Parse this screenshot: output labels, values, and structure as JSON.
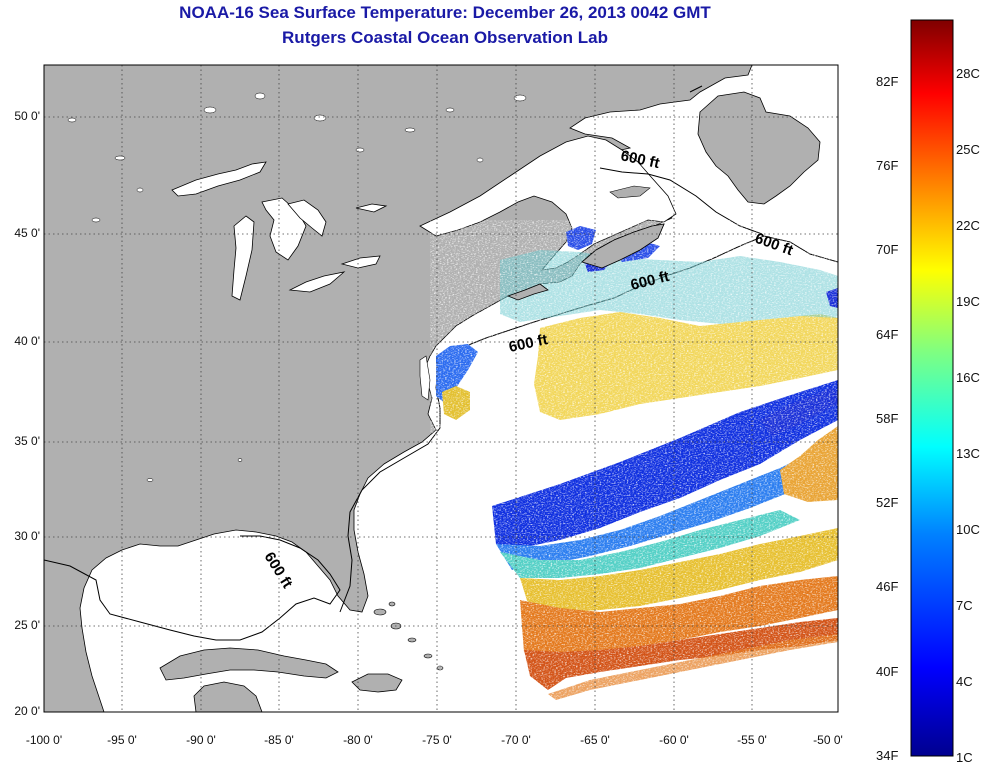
{
  "title": "NOAA-16 Sea Surface Temperature:  December 26, 2013 0042 GMT",
  "subtitle": "Rutgers Coastal Ocean Observation Lab",
  "map": {
    "lon_labels": [
      "-100 0'",
      "-95 0'",
      "-90 0'",
      "-85 0'",
      "-80 0'",
      "-75 0'",
      "-70 0'",
      "-65 0'",
      "-60 0'",
      "-55 0'",
      "-50 0'"
    ],
    "lat_labels": [
      "50 0'",
      "45 0'",
      "40 0'",
      "35 0'",
      "30 0'",
      "25 0'",
      "20 0'"
    ],
    "isobath_labels": [
      "600 ft",
      "600 ft",
      "600 ft",
      "600 ft",
      "600 ft"
    ],
    "land_color": "#b0b0b0",
    "ocean_color": "#ffffff"
  },
  "colorbar": {
    "fahrenheit": [
      "82F",
      "76F",
      "70F",
      "64F",
      "58F",
      "52F",
      "46F",
      "40F",
      "34F"
    ],
    "celsius": [
      "28C",
      "25C",
      "22C",
      "19C",
      "16C",
      "13C",
      "10C",
      "7C",
      "4C",
      "1C"
    ],
    "colors": [
      "#7f0000",
      "#ff0000",
      "#ff8000",
      "#ffff00",
      "#80ff80",
      "#00ffff",
      "#0080ff",
      "#0000ff",
      "#00008f"
    ]
  }
}
